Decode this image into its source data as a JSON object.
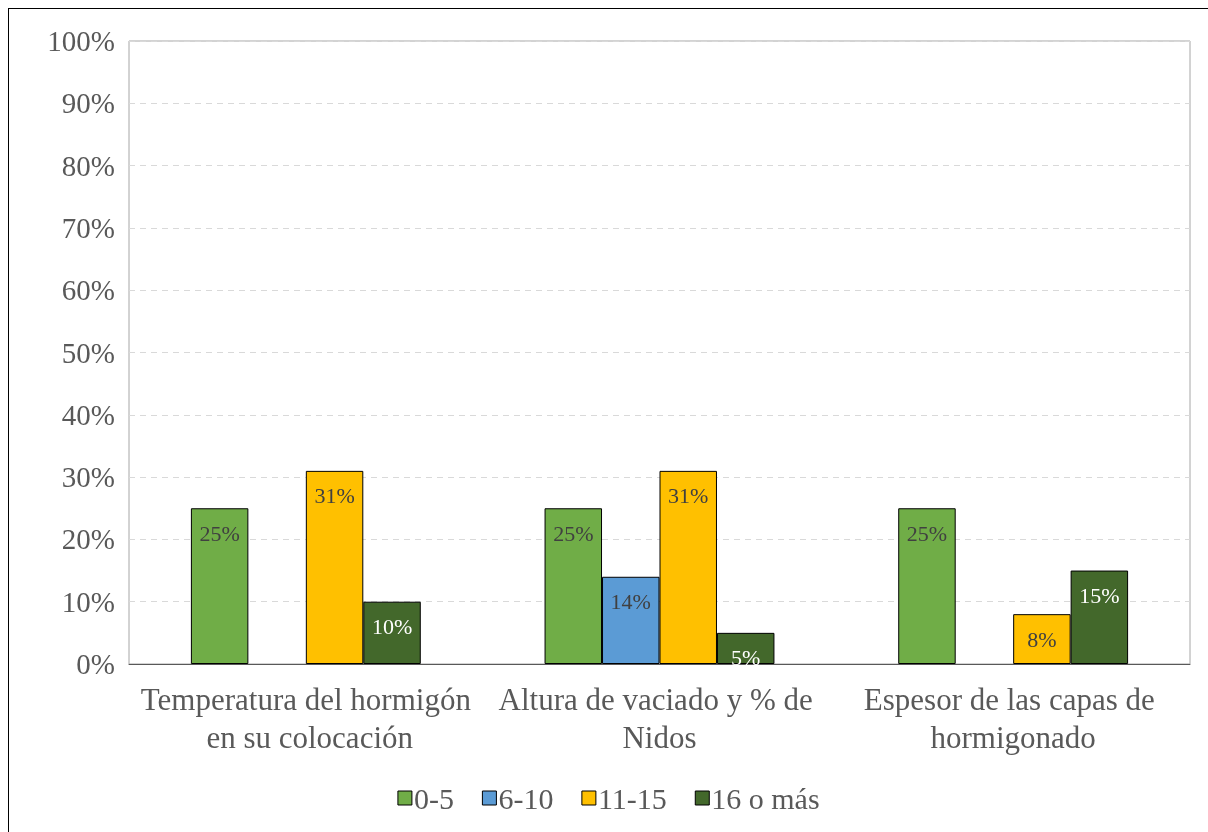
{
  "chart_data": {
    "type": "bar",
    "categories": [
      "Temperatura del hormigón en su colocación",
      "Altura de vaciado y % de Nidos",
      "Espesor de las capas de hormigonado"
    ],
    "series": [
      {
        "name": "0-5",
        "color": "#70ad47",
        "values": [
          25,
          25,
          25
        ],
        "value_labels": [
          "25%",
          "25%",
          "25%"
        ]
      },
      {
        "name": "6-10",
        "color": "#5b9bd5",
        "values": [
          null,
          14,
          null
        ],
        "value_labels": [
          null,
          "14%",
          null
        ]
      },
      {
        "name": "11-15",
        "color": "#ffc000",
        "values": [
          31,
          31,
          8
        ],
        "value_labels": [
          "31%",
          "31%",
          "8%"
        ]
      },
      {
        "name": "16 o más",
        "color": "#43682b",
        "values": [
          10,
          5,
          15
        ],
        "value_labels": [
          "10%",
          "5%",
          "15%"
        ]
      }
    ],
    "ylim": [
      0,
      100
    ],
    "yticks": [
      {
        "value": 0,
        "label": "0%"
      },
      {
        "value": 10,
        "label": "10%"
      },
      {
        "value": 20,
        "label": "20%"
      },
      {
        "value": 30,
        "label": "30%"
      },
      {
        "value": 40,
        "label": "40%"
      },
      {
        "value": 50,
        "label": "50%"
      },
      {
        "value": 60,
        "label": "60%"
      },
      {
        "value": 70,
        "label": "70%"
      },
      {
        "value": 80,
        "label": "80%"
      },
      {
        "value": 90,
        "label": "90%"
      },
      {
        "value": 100,
        "label": "100%"
      }
    ],
    "grid": "y",
    "legend": "bottom"
  }
}
